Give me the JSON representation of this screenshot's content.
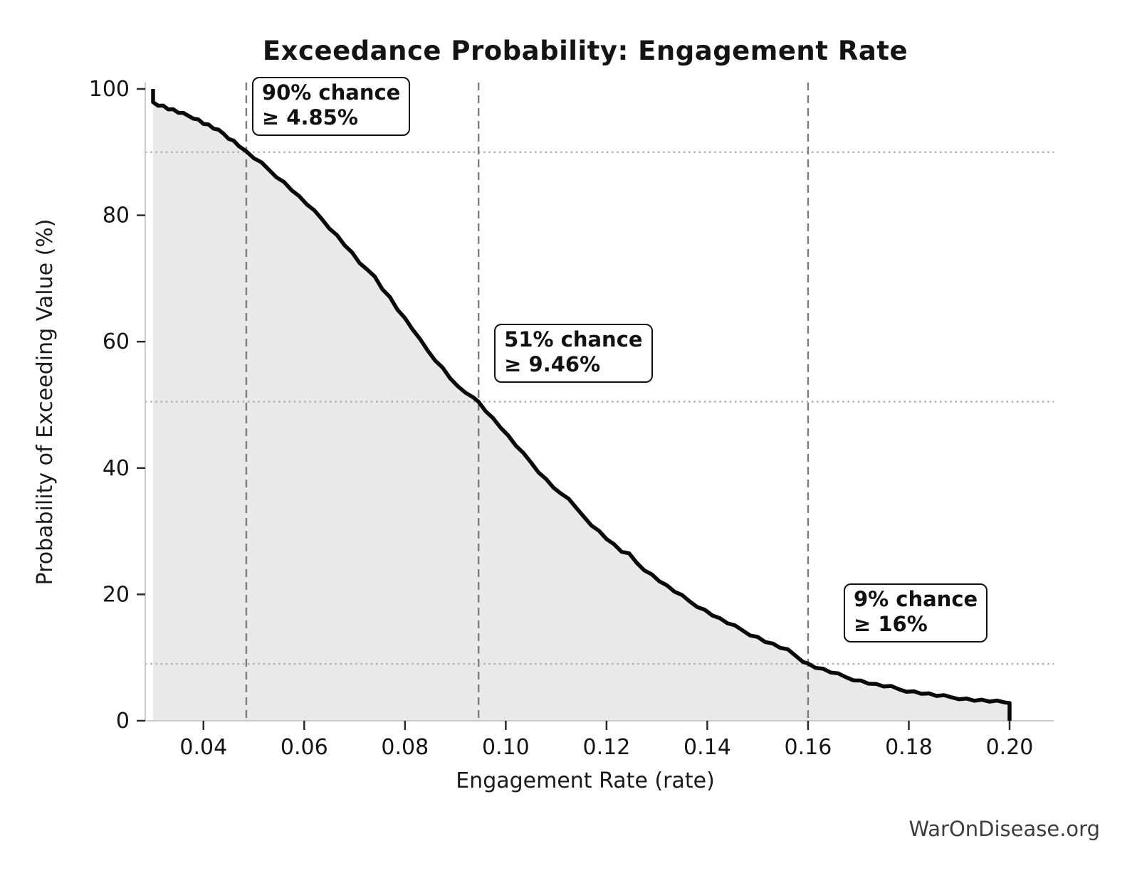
{
  "title": "Exceedance Probability: Engagement Rate",
  "watermark": "WarOnDisease.org",
  "chart_data": {
    "type": "line",
    "title": "Exceedance Probability: Engagement Rate",
    "xlabel": "Engagement Rate (rate)",
    "ylabel": "Probability of Exceeding Value (%)",
    "xlim": [
      0.0285,
      0.2085
    ],
    "ylim": [
      0,
      101
    ],
    "grid": "guide lines only (dashed vertical at thresholds, dotted horizontal at probabilities)",
    "legend": "none",
    "x_ticks": [
      0.04,
      0.06,
      0.08,
      0.1,
      0.12,
      0.14,
      0.16,
      0.18,
      0.2
    ],
    "x_tick_labels": [
      "0.04",
      "0.06",
      "0.08",
      "0.10",
      "0.12",
      "0.14",
      "0.16",
      "0.18",
      "0.20"
    ],
    "y_ticks": [
      0,
      20,
      40,
      60,
      80,
      100
    ],
    "y_tick_labels": [
      "0",
      "20",
      "40",
      "60",
      "80",
      "100"
    ],
    "fill_under_curve": true,
    "annotations": [
      {
        "line1": "90% chance",
        "line2": "≥ 4.85%",
        "rate": 0.0485,
        "pct": 90
      },
      {
        "line1": "51% chance",
        "line2": "≥ 9.46%",
        "rate": 0.0946,
        "pct": 50.5
      },
      {
        "line1": "9% chance",
        "line2": "≥ 16%",
        "rate": 0.16,
        "pct": 9
      }
    ],
    "series": [
      {
        "name": "exceedance-probability-curve",
        "points": [
          [
            0.03,
            100.0
          ],
          [
            0.03,
            97.9
          ],
          [
            0.031,
            97.55
          ],
          [
            0.032,
            97.3
          ],
          [
            0.033,
            96.9
          ],
          [
            0.034,
            96.65
          ],
          [
            0.035,
            96.3
          ],
          [
            0.036,
            96.0
          ],
          [
            0.037,
            95.75
          ],
          [
            0.038,
            95.5
          ],
          [
            0.039,
            95.1
          ],
          [
            0.04,
            94.6
          ],
          [
            0.041,
            94.25
          ],
          [
            0.042,
            93.8
          ],
          [
            0.043,
            93.35
          ],
          [
            0.044,
            92.9
          ],
          [
            0.045,
            92.3
          ],
          [
            0.046,
            91.75
          ],
          [
            0.047,
            91.1
          ],
          [
            0.0485,
            90.0
          ],
          [
            0.05,
            89.1
          ],
          [
            0.0515,
            88.2
          ],
          [
            0.053,
            87.2
          ],
          [
            0.0545,
            86.2
          ],
          [
            0.056,
            85.2
          ],
          [
            0.0575,
            84.1
          ],
          [
            0.059,
            82.9
          ],
          [
            0.0605,
            81.8
          ],
          [
            0.062,
            80.6
          ],
          [
            0.0635,
            79.4
          ],
          [
            0.065,
            78.1
          ],
          [
            0.0665,
            76.8
          ],
          [
            0.068,
            75.4
          ],
          [
            0.0695,
            74.0
          ],
          [
            0.071,
            72.5
          ],
          [
            0.0725,
            71.2
          ],
          [
            0.074,
            70.3
          ],
          [
            0.0755,
            68.5
          ],
          [
            0.077,
            67.0
          ],
          [
            0.0785,
            65.2
          ],
          [
            0.08,
            63.6
          ],
          [
            0.0815,
            62.0
          ],
          [
            0.083,
            60.2
          ],
          [
            0.0845,
            58.6
          ],
          [
            0.086,
            57.2
          ],
          [
            0.0875,
            55.8
          ],
          [
            0.089,
            54.3
          ],
          [
            0.0905,
            52.8
          ],
          [
            0.092,
            52.0
          ],
          [
            0.0935,
            51.0
          ],
          [
            0.0946,
            50.5
          ],
          [
            0.096,
            49.2
          ],
          [
            0.0975,
            47.8
          ],
          [
            0.099,
            46.5
          ],
          [
            0.1005,
            45.0
          ],
          [
            0.102,
            43.6
          ],
          [
            0.1035,
            42.2
          ],
          [
            0.105,
            40.9
          ],
          [
            0.1065,
            39.5
          ],
          [
            0.108,
            38.2
          ],
          [
            0.1095,
            37.0
          ],
          [
            0.111,
            35.8
          ],
          [
            0.1125,
            35.2
          ],
          [
            0.114,
            33.5
          ],
          [
            0.1155,
            32.3
          ],
          [
            0.117,
            31.1
          ],
          [
            0.1185,
            30.0
          ],
          [
            0.12,
            28.9
          ],
          [
            0.1215,
            27.8
          ],
          [
            0.123,
            26.8
          ],
          [
            0.1245,
            26.3
          ],
          [
            0.126,
            25.0
          ],
          [
            0.1275,
            24.0
          ],
          [
            0.129,
            23.1
          ],
          [
            0.1305,
            22.2
          ],
          [
            0.132,
            21.3
          ],
          [
            0.1335,
            20.5
          ],
          [
            0.135,
            19.7
          ],
          [
            0.1365,
            18.9
          ],
          [
            0.138,
            18.2
          ],
          [
            0.1395,
            17.5
          ],
          [
            0.141,
            16.8
          ],
          [
            0.1425,
            16.1
          ],
          [
            0.144,
            15.5
          ],
          [
            0.1455,
            14.9
          ],
          [
            0.147,
            14.3
          ],
          [
            0.1485,
            13.7
          ],
          [
            0.15,
            13.2
          ],
          [
            0.1515,
            12.6
          ],
          [
            0.153,
            12.1
          ],
          [
            0.1545,
            11.6
          ],
          [
            0.156,
            11.1
          ],
          [
            0.1575,
            10.3
          ],
          [
            0.159,
            9.5
          ],
          [
            0.16,
            9.0
          ],
          [
            0.1615,
            8.5
          ],
          [
            0.163,
            8.1
          ],
          [
            0.1645,
            7.7
          ],
          [
            0.166,
            7.3
          ],
          [
            0.1675,
            6.9
          ],
          [
            0.169,
            6.6
          ],
          [
            0.1705,
            6.3
          ],
          [
            0.172,
            6.0
          ],
          [
            0.1735,
            5.7
          ],
          [
            0.175,
            5.5
          ],
          [
            0.1765,
            5.3
          ],
          [
            0.178,
            5.0
          ],
          [
            0.1795,
            4.8
          ],
          [
            0.181,
            4.6
          ],
          [
            0.1825,
            4.4
          ],
          [
            0.184,
            4.2
          ],
          [
            0.1855,
            4.0
          ],
          [
            0.187,
            3.85
          ],
          [
            0.1885,
            3.7
          ],
          [
            0.19,
            3.6
          ],
          [
            0.1915,
            3.45
          ],
          [
            0.193,
            3.3
          ],
          [
            0.1945,
            3.2
          ],
          [
            0.196,
            3.1
          ],
          [
            0.1975,
            3.0
          ],
          [
            0.199,
            2.9
          ],
          [
            0.2,
            2.8
          ],
          [
            0.2,
            0.0
          ]
        ]
      }
    ],
    "colors": {
      "curve": "#0a0a0a",
      "fill": "#e9e9e9",
      "dashed_guide": "#7d7d7d",
      "dotted_guide": "#ababab",
      "spine": "#c9c9c9",
      "tick": "#2b2b2b",
      "tick_label": "#141414",
      "annotation_border": "#111111",
      "watermark": "#3d3d3d"
    }
  }
}
